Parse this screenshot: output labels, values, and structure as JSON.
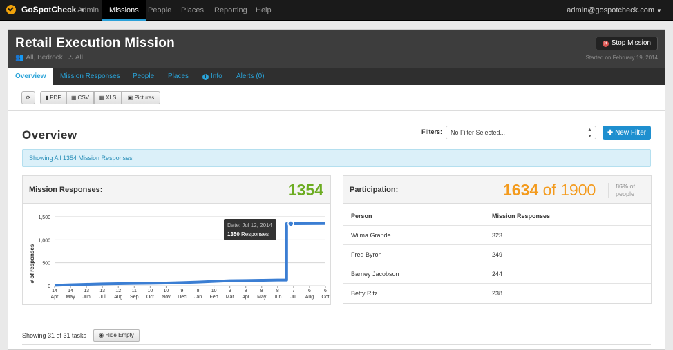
{
  "topnav": {
    "brand": "GoSpotCheck",
    "items": [
      "Admin",
      "Missions",
      "People",
      "Places",
      "Reporting",
      "Help"
    ],
    "active": "Missions",
    "user": "admin@gospotcheck.com"
  },
  "mission": {
    "title": "Retail Execution Mission",
    "groups": "All, Bedrock",
    "hierarchy": "All",
    "stop_label": "Stop Mission",
    "started": "Started on February 19, 2014"
  },
  "tabs": [
    "Overview",
    "Mission Responses",
    "People",
    "Places",
    "Info",
    "Alerts (0)"
  ],
  "toolbar": {
    "refresh_icon": "refresh-icon",
    "pdf": "PDF",
    "csv": "CSV",
    "xls": "XLS",
    "pictures": "Pictures"
  },
  "overview": {
    "title": "Overview",
    "filters_label": "Filters:",
    "filter_value": "No Filter Selected...",
    "new_filter": "New Filter",
    "alert": "Showing All 1354 Mission Responses"
  },
  "responses_panel": {
    "title": "Mission Responses:",
    "total": "1354",
    "tooltip_date": "Date: Jul 12, 2014",
    "tooltip_value": "1350",
    "tooltip_suffix": "Responses"
  },
  "participation": {
    "title": "Participation:",
    "count": "1634",
    "of_label": "of",
    "total": "1900",
    "pct": "86%",
    "pct_label": "of people",
    "col_person": "Person",
    "col_responses": "Mission Responses",
    "rows": [
      {
        "person": "Wilma Grande",
        "responses": "323"
      },
      {
        "person": "Fred Byron",
        "responses": "249"
      },
      {
        "person": "Barney Jacobson",
        "responses": "244"
      },
      {
        "person": "Betty Ritz",
        "responses": "238"
      }
    ]
  },
  "tasks": {
    "showing": "Showing 31 of 31 tasks",
    "hide_empty": "Hide Empty"
  },
  "chart_data": {
    "type": "line",
    "ylabel": "# of responses",
    "ylim": [
      0,
      1500
    ],
    "yticks": [
      "0",
      "500",
      "1,000",
      "1,500"
    ],
    "x_day": [
      "14",
      "14",
      "13",
      "13",
      "12",
      "11",
      "10",
      "10",
      "9",
      "8",
      "10",
      "9",
      "8",
      "8",
      "8",
      "7",
      "6",
      "6"
    ],
    "x_month": [
      "Apr",
      "May",
      "Jun",
      "Jul",
      "Aug",
      "Sep",
      "Oct",
      "Nov",
      "Dec",
      "Jan",
      "Feb",
      "Mar",
      "Apr",
      "May",
      "Jun",
      "Jul",
      "Aug",
      "Oct"
    ],
    "series": [
      {
        "values": [
          10,
          20,
          30,
          40,
          45,
          50,
          55,
          60,
          70,
          80,
          95,
          110,
          115,
          120,
          125,
          1350,
          1352,
          1354
        ]
      }
    ],
    "grid": true
  }
}
